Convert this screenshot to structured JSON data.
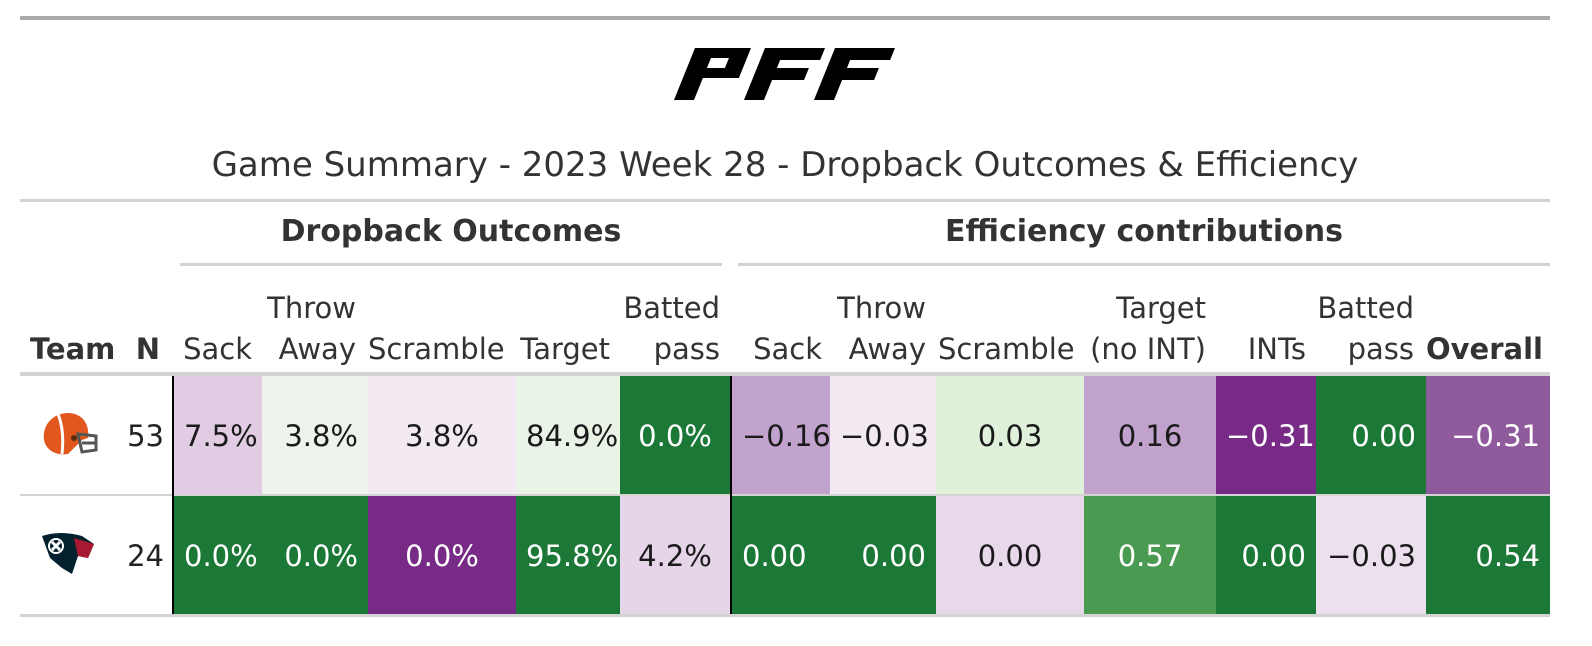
{
  "logo_text": "PFF",
  "title": "Game Summary - 2023 Week 28 - Dropback Outcomes & Efficiency",
  "spanners": {
    "outcomes": "Dropback Outcomes",
    "efficiency": "Efficiency contributions"
  },
  "columns": {
    "team": "Team",
    "n": "N",
    "o_sack": "Sack",
    "o_throw_l1": "Throw",
    "o_throw_l2": "Away",
    "o_scramble": "Scramble",
    "o_target": "Target",
    "o_batted_l1": "Batted",
    "o_batted_l2": "pass",
    "e_sack": "Sack",
    "e_throw_l1": "Throw",
    "e_throw_l2": "Away",
    "e_scramble": "Scramble",
    "e_target_l1": "Target",
    "e_target_l2": "(no INT)",
    "e_ints": "INTs",
    "e_batted_l1": "Batted",
    "e_batted_l2": "pass",
    "e_overall": "Overall"
  },
  "rows": [
    {
      "team_icon": "browns-helmet-icon",
      "n": "53",
      "cells": [
        {
          "value": "7.5%",
          "bg": "#e1cce4",
          "fg": "#1a1a1a"
        },
        {
          "value": "3.8%",
          "bg": "#eef4ec",
          "fg": "#1a1a1a"
        },
        {
          "value": "3.8%",
          "bg": "#f2e9f2",
          "fg": "#1a1a1a"
        },
        {
          "value": "84.9%",
          "bg": "#e9f3e6",
          "fg": "#1a1a1a"
        },
        {
          "value": "0.0%",
          "bg": "#1b7837",
          "fg": "#ffffff"
        },
        {
          "value": "−0.16",
          "bg": "#c2a3cd",
          "fg": "#1a1a1a"
        },
        {
          "value": "−0.03",
          "bg": "#f2e9f2",
          "fg": "#1a1a1a"
        },
        {
          "value": "0.03",
          "bg": "#dff0db",
          "fg": "#1a1a1a"
        },
        {
          "value": "0.16",
          "bg": "#c0a2cc",
          "fg": "#1a1a1a"
        },
        {
          "value": "−0.31",
          "bg": "#782b86",
          "fg": "#ffffff"
        },
        {
          "value": "0.00",
          "bg": "#1b7837",
          "fg": "#ffffff"
        },
        {
          "value": "−0.31",
          "bg": "#8f5a9c",
          "fg": "#ffffff"
        }
      ]
    },
    {
      "team_icon": "texans-bull-icon",
      "n": "24",
      "cells": [
        {
          "value": "0.0%",
          "bg": "#1b7837",
          "fg": "#ffffff"
        },
        {
          "value": "0.0%",
          "bg": "#1b7837",
          "fg": "#ffffff"
        },
        {
          "value": "0.0%",
          "bg": "#782b86",
          "fg": "#ffffff"
        },
        {
          "value": "95.8%",
          "bg": "#1b7837",
          "fg": "#ffffff"
        },
        {
          "value": "4.2%",
          "bg": "#e6d4e8",
          "fg": "#1a1a1a"
        },
        {
          "value": "0.00",
          "bg": "#1b7837",
          "fg": "#ffffff"
        },
        {
          "value": "0.00",
          "bg": "#1b7837",
          "fg": "#ffffff"
        },
        {
          "value": "0.00",
          "bg": "#e8d9ea",
          "fg": "#1a1a1a"
        },
        {
          "value": "0.57",
          "bg": "#4a9a52",
          "fg": "#ffffff"
        },
        {
          "value": "0.00",
          "bg": "#1b7837",
          "fg": "#ffffff"
        },
        {
          "value": "−0.03",
          "bg": "#ede0ee",
          "fg": "#1a1a1a"
        },
        {
          "value": "0.54",
          "bg": "#1b7837",
          "fg": "#ffffff"
        }
      ]
    }
  ]
}
